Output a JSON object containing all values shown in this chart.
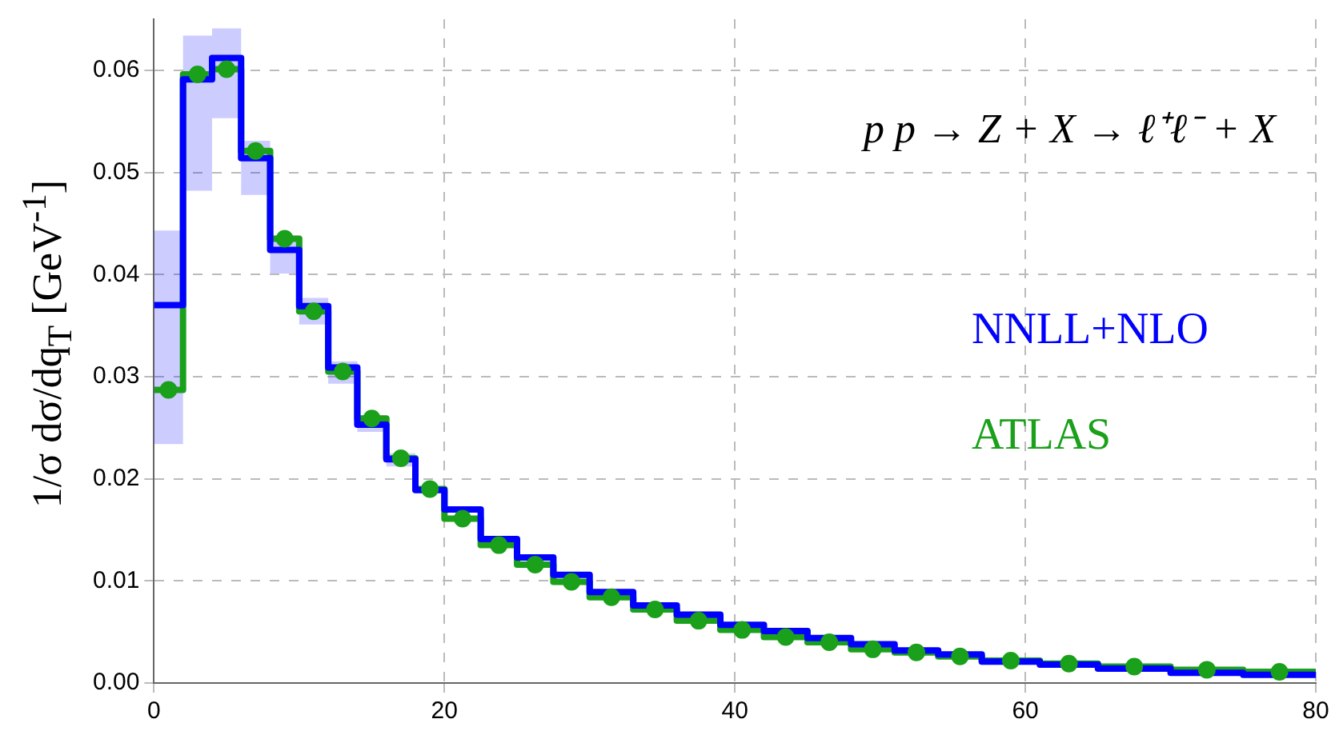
{
  "chart_data": {
    "type": "step",
    "title": "p p → Z + X → ℓ⁺ℓ⁻ + X",
    "ylabel": "1/σ dσ/dq$_{T}$ [GeV$^{-1}$]",
    "series": [
      {
        "name": "NNLL+NLO",
        "color": "#0000ff",
        "x": [
          0,
          2,
          4,
          6,
          8,
          10,
          12,
          14,
          16,
          18,
          20,
          22.5,
          25,
          27.5,
          30,
          33,
          36,
          39,
          42,
          45,
          48,
          51,
          54,
          57,
          61,
          65,
          70,
          75,
          80
        ],
        "values": [
          0.037,
          0.0591,
          0.0612,
          0.0514,
          0.0424,
          0.0369,
          0.0309,
          0.0253,
          0.0219,
          0.0189,
          0.017,
          0.0141,
          0.0123,
          0.0106,
          0.0089,
          0.0076,
          0.0067,
          0.0057,
          0.0051,
          0.0044,
          0.0038,
          0.0032,
          0.0028,
          0.0021,
          0.0018,
          0.0014,
          0.001,
          0.0008,
          0.0008
        ],
        "lower": [
          0.0234,
          0.0482,
          0.0553,
          0.0478,
          0.0401,
          0.0351,
          0.0293,
          0.0246,
          0.0212,
          0.0185,
          null,
          null,
          null,
          null,
          null,
          null,
          null,
          null,
          null,
          null,
          null,
          null,
          null,
          null,
          null,
          null,
          null,
          null,
          null
        ],
        "upper": [
          0.0443,
          0.0634,
          0.0641,
          0.0531,
          0.0438,
          0.0377,
          0.0315,
          0.0262,
          0.0225,
          0.0194,
          null,
          null,
          null,
          null,
          null,
          null,
          null,
          null,
          null,
          null,
          null,
          null,
          null,
          null,
          null,
          null,
          null,
          null,
          null
        ]
      },
      {
        "name": "ATLAS",
        "color": "#1aa01a",
        "x": [
          0,
          2,
          4,
          6,
          8,
          10,
          12,
          14,
          16,
          18,
          20,
          22.5,
          25,
          27.5,
          30,
          33,
          36,
          39,
          42,
          45,
          48,
          51,
          54,
          57,
          61,
          65,
          70,
          75,
          80
        ],
        "values": [
          0.0287,
          0.0596,
          0.0601,
          0.0521,
          0.0435,
          0.0364,
          0.0305,
          0.0259,
          0.022,
          0.019,
          0.0161,
          0.0135,
          0.0116,
          0.0099,
          0.0084,
          0.0072,
          0.0061,
          0.0052,
          0.0045,
          0.004,
          0.0033,
          0.003,
          0.0026,
          0.0022,
          0.0019,
          0.0016,
          0.0013,
          0.0011,
          0.0011
        ]
      },
      {
        "type": "scatter",
        "color": "#1aa01a",
        "marker": "circle",
        "x": [
          1,
          3,
          5,
          7,
          9,
          11,
          13,
          15,
          17,
          19,
          21.25,
          23.75,
          26.25,
          28.75,
          31.5,
          34.5,
          37.5,
          40.5,
          43.5,
          46.5,
          49.5,
          52.5,
          55.5,
          59,
          63,
          67.5,
          72.5,
          77.5
        ],
        "values": [
          0.0287,
          0.0596,
          0.0601,
          0.0521,
          0.0435,
          0.0364,
          0.0305,
          0.0259,
          0.022,
          0.019,
          0.0161,
          0.0135,
          0.0116,
          0.0099,
          0.0084,
          0.0072,
          0.0061,
          0.0052,
          0.0045,
          0.004,
          0.0033,
          0.003,
          0.0026,
          0.0022,
          0.0019,
          0.0016,
          0.0013,
          0.0011
        ]
      }
    ],
    "xlim": [
      0,
      80
    ],
    "xticks": [
      0,
      20,
      40,
      60,
      80
    ],
    "ylim": [
      0,
      0.065
    ],
    "yticks": [
      {
        "value": 0,
        "label": "0.00"
      },
      {
        "value": 0.01,
        "label": "0.01"
      },
      {
        "value": 0.02,
        "label": "0.02"
      },
      {
        "value": 0.03,
        "label": "0.03"
      },
      {
        "value": 0.04,
        "label": "0.04"
      },
      {
        "value": 0.05,
        "label": "0.05"
      },
      {
        "value": 0.06,
        "label": "0.06"
      }
    ],
    "grid": true,
    "legend": "right"
  }
}
